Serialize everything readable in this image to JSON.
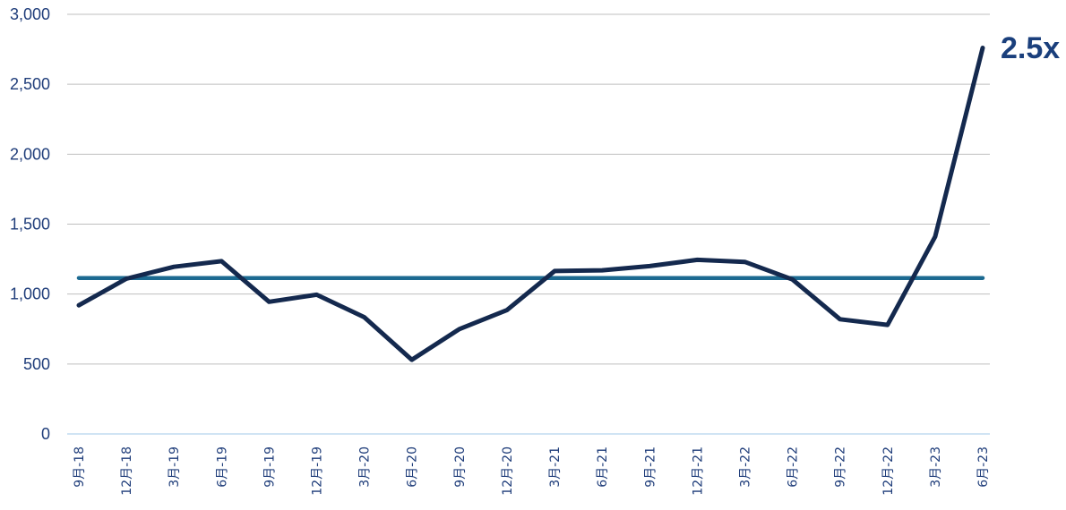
{
  "chart_data": {
    "type": "line",
    "categories": [
      "9月-18",
      "12月-18",
      "3月-19",
      "6月-19",
      "9月-19",
      "12月-19",
      "3月-20",
      "6月-20",
      "9月-20",
      "12月-20",
      "3月-21",
      "6月-21",
      "9月-21",
      "12月-21",
      "3月-22",
      "6月-22",
      "9月-22",
      "12月-22",
      "3月-23",
      "6月-23"
    ],
    "series": [
      {
        "values": [
          920,
          1110,
          1195,
          1235,
          945,
          995,
          835,
          530,
          750,
          885,
          1165,
          1170,
          1200,
          1245,
          1230,
          1105,
          820,
          780,
          1410,
          2760
        ],
        "color": "#14294e"
      }
    ],
    "reference_line": {
      "value": 1115,
      "color": "#1c6a91"
    },
    "yticks": [
      {
        "value": 0,
        "label": "0"
      },
      {
        "value": 500,
        "label": "500"
      },
      {
        "value": 1000,
        "label": "1,000"
      },
      {
        "value": 1500,
        "label": "1,500"
      },
      {
        "value": 2000,
        "label": "2,000"
      },
      {
        "value": 2500,
        "label": "2,500"
      },
      {
        "value": 3000,
        "label": "3,000"
      }
    ],
    "ylim": [
      0,
      3000
    ],
    "grid": true,
    "title": "",
    "xlabel": "",
    "ylabel": "",
    "annotation": {
      "text": "2.5x",
      "color": "#1a3f7c"
    },
    "colors": {
      "grid": "#bfbfbf",
      "axis": "#d0e4f4",
      "tick_text": "#1f3d7a"
    }
  }
}
